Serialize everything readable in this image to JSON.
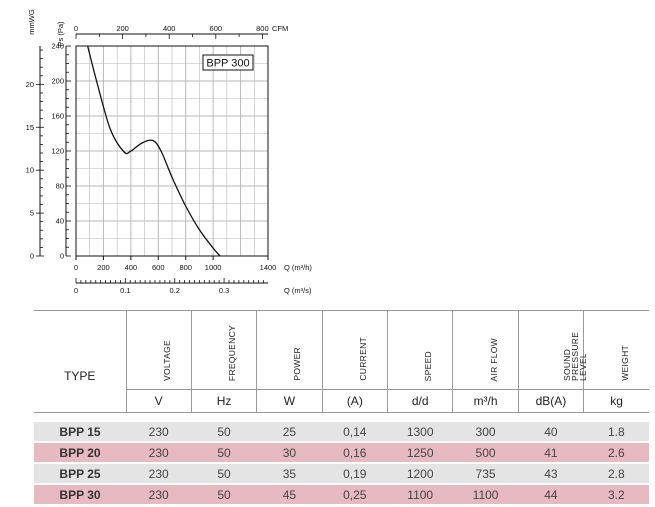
{
  "chart_data": {
    "type": "line",
    "model_label": "BPP 300",
    "series": [
      {
        "x": [
          85,
          150,
          250,
          350,
          400,
          480,
          560,
          620,
          700,
          800,
          900,
          1000,
          1050
        ],
        "y": [
          240,
          200,
          145,
          119,
          120,
          129,
          132,
          120,
          90,
          57,
          30,
          9,
          0
        ]
      }
    ],
    "axes": {
      "q_m3h": {
        "label": "Q (m³/h)",
        "min": 0,
        "max": 1400,
        "ticks": [
          "0",
          "200",
          "400",
          "600",
          "800",
          "1000",
          "1400"
        ]
      },
      "cfm": {
        "label": "CFM",
        "min": 0,
        "max": 824,
        "ticks": [
          "0",
          "200",
          "400",
          "600",
          "800"
        ]
      },
      "q_m3s": {
        "label": "Q (m³/s)",
        "min": 0,
        "max": 0.389,
        "ticks": [
          "0",
          "0.1",
          "0.2",
          "0.3"
        ]
      },
      "ps_pa": {
        "label": "Ps (Pa)",
        "min": 0,
        "max": 240,
        "ticks": [
          "0",
          "40",
          "80",
          "120",
          "160",
          "200",
          "240"
        ]
      },
      "mmwg": {
        "label": "mmWG",
        "min": 0,
        "max": 24.47,
        "ticks": [
          "0",
          "5",
          "10",
          "15",
          "20"
        ]
      }
    },
    "grid": true
  },
  "table": {
    "type_header": "TYPE",
    "columns": [
      {
        "label": "VOLTAGE",
        "unit": "V"
      },
      {
        "label": "FREQUENCY",
        "unit": "Hz"
      },
      {
        "label": "POWER",
        "unit": "W"
      },
      {
        "label": "CURRENT",
        "unit": "(A)"
      },
      {
        "label": "SPEED",
        "unit": "d/d"
      },
      {
        "label": "AIR FLOW",
        "unit": "m³/h"
      },
      {
        "label": "SOUND PRESSURE LEVEL",
        "unit": "dB(A)"
      },
      {
        "label": "WEIGHT",
        "unit": "kg"
      }
    ],
    "rows": [
      {
        "name": "BPP 15",
        "values": [
          "230",
          "50",
          "25",
          "0,14",
          "1300",
          "300",
          "40",
          "1.8"
        ],
        "shade": "#e4e4e4"
      },
      {
        "name": "BPP 20",
        "values": [
          "230",
          "50",
          "30",
          "0,16",
          "1250",
          "500",
          "41",
          "2.6"
        ],
        "shade": "#e7b9c0"
      },
      {
        "name": "BPP 25",
        "values": [
          "230",
          "50",
          "35",
          "0,19",
          "1200",
          "735",
          "43",
          "2.8"
        ],
        "shade": "#e4e4e4"
      },
      {
        "name": "BPP 30",
        "values": [
          "230",
          "50",
          "45",
          "0,25",
          "1100",
          "1100",
          "44",
          "3.2"
        ],
        "shade": "#e7b9c0"
      }
    ]
  }
}
